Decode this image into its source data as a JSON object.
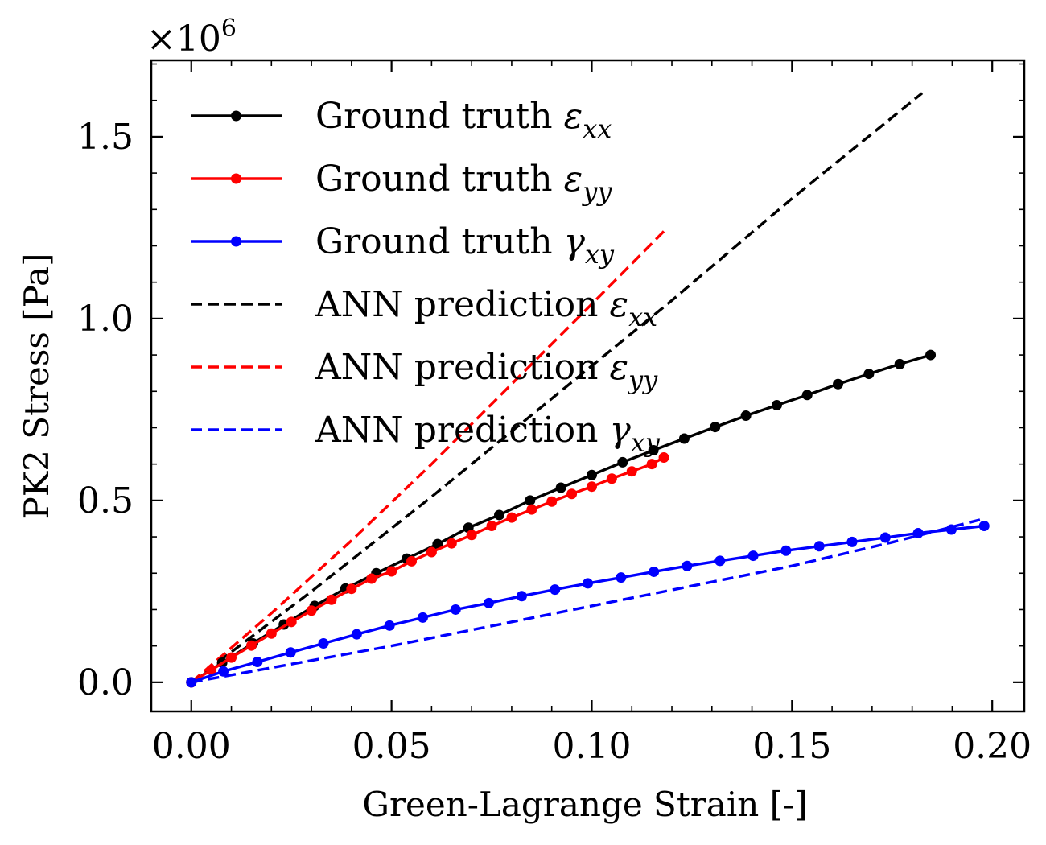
{
  "chart_data": {
    "type": "line",
    "xlabel": "Green-Lagrange Strain [-]",
    "ylabel": "PK2 Stress [Pa]",
    "y_multiplier": {
      "base": "×10",
      "exponent": "6"
    },
    "xlim": [
      -0.01,
      0.208
    ],
    "ylim": [
      -0.08,
      1.71
    ],
    "x_ticks": [
      0.0,
      0.05,
      0.1,
      0.15,
      0.2
    ],
    "x_tick_labels": [
      "0.00",
      "0.05",
      "0.10",
      "0.15",
      "0.20"
    ],
    "y_ticks": [
      0.0,
      0.5,
      1.0,
      1.5
    ],
    "y_tick_labels": [
      "0.0",
      "0.5",
      "1.0",
      "1.5"
    ],
    "legend_position": "top-left",
    "grid": false,
    "series": [
      {
        "name": "Ground truth ε_xx",
        "label_text": "Ground truth ",
        "symbol": "ε",
        "subscript": "xx",
        "color": "#000000",
        "style": "solid-markers",
        "x": [
          0.0,
          0.0077,
          0.0154,
          0.0231,
          0.0308,
          0.0385,
          0.0462,
          0.0538,
          0.0615,
          0.0692,
          0.0769,
          0.0846,
          0.0923,
          0.1,
          0.1077,
          0.1154,
          0.1231,
          0.1308,
          0.1385,
          0.1462,
          0.1538,
          0.1615,
          0.1692,
          0.1769,
          0.1846
        ],
        "y": [
          0.0,
          0.054,
          0.107,
          0.159,
          0.21,
          0.258,
          0.3,
          0.34,
          0.38,
          0.425,
          0.46,
          0.5,
          0.535,
          0.57,
          0.605,
          0.638,
          0.67,
          0.702,
          0.733,
          0.762,
          0.79,
          0.82,
          0.848,
          0.875,
          0.9
        ]
      },
      {
        "name": "Ground truth ε_yy",
        "label_text": "Ground truth ",
        "symbol": "ε",
        "subscript": "yy",
        "color": "#ff0000",
        "style": "solid-markers",
        "x": [
          0.0,
          0.005,
          0.01,
          0.015,
          0.02,
          0.025,
          0.03,
          0.035,
          0.04,
          0.045,
          0.05,
          0.055,
          0.06,
          0.065,
          0.07,
          0.075,
          0.08,
          0.085,
          0.09,
          0.095,
          0.1,
          0.105,
          0.11,
          0.115,
          0.118
        ],
        "y": [
          0.0,
          0.034,
          0.068,
          0.101,
          0.134,
          0.166,
          0.197,
          0.227,
          0.257,
          0.285,
          0.305,
          0.333,
          0.358,
          0.382,
          0.405,
          0.43,
          0.453,
          0.475,
          0.497,
          0.518,
          0.538,
          0.56,
          0.58,
          0.6,
          0.618
        ]
      },
      {
        "name": "Ground truth γ_xy",
        "label_text": "Ground truth ",
        "symbol": "γ",
        "subscript": "xy",
        "color": "#0000ff",
        "style": "solid-markers",
        "x": [
          0.0,
          0.008,
          0.0165,
          0.0248,
          0.033,
          0.0413,
          0.0495,
          0.0578,
          0.066,
          0.0743,
          0.0825,
          0.0908,
          0.099,
          0.1073,
          0.1155,
          0.1238,
          0.132,
          0.1403,
          0.1485,
          0.1568,
          0.165,
          0.1733,
          0.1815,
          0.1898,
          0.198
        ],
        "y": [
          0.0,
          0.03,
          0.056,
          0.082,
          0.107,
          0.132,
          0.156,
          0.178,
          0.2,
          0.218,
          0.237,
          0.255,
          0.272,
          0.288,
          0.304,
          0.32,
          0.334,
          0.348,
          0.362,
          0.374,
          0.386,
          0.398,
          0.41,
          0.42,
          0.43
        ]
      },
      {
        "name": "ANN prediction ε_xx",
        "label_text": "ANN prediction ",
        "symbol": "ε",
        "subscript": "xx",
        "color": "#000000",
        "style": "dashed",
        "x": [
          0.0,
          0.03,
          0.06,
          0.09,
          0.12,
          0.15,
          0.1825
        ],
        "y": [
          0.0,
          0.25,
          0.51,
          0.78,
          1.05,
          1.33,
          1.62
        ]
      },
      {
        "name": "ANN prediction ε_yy",
        "label_text": "ANN prediction ",
        "symbol": "ε",
        "subscript": "yy",
        "color": "#ff0000",
        "style": "dashed",
        "x": [
          0.0,
          0.02,
          0.04,
          0.06,
          0.08,
          0.1,
          0.118
        ],
        "y": [
          0.0,
          0.19,
          0.39,
          0.6,
          0.82,
          1.04,
          1.24
        ]
      },
      {
        "name": "ANN prediction γ_xy",
        "label_text": "ANN prediction ",
        "symbol": "γ",
        "subscript": "xy",
        "color": "#0000ff",
        "style": "dashed",
        "x": [
          0.0,
          0.025,
          0.05,
          0.075,
          0.1,
          0.125,
          0.15,
          0.175,
          0.198
        ],
        "y": [
          0.0,
          0.05,
          0.1,
          0.155,
          0.21,
          0.265,
          0.32,
          0.385,
          0.45
        ]
      }
    ]
  }
}
